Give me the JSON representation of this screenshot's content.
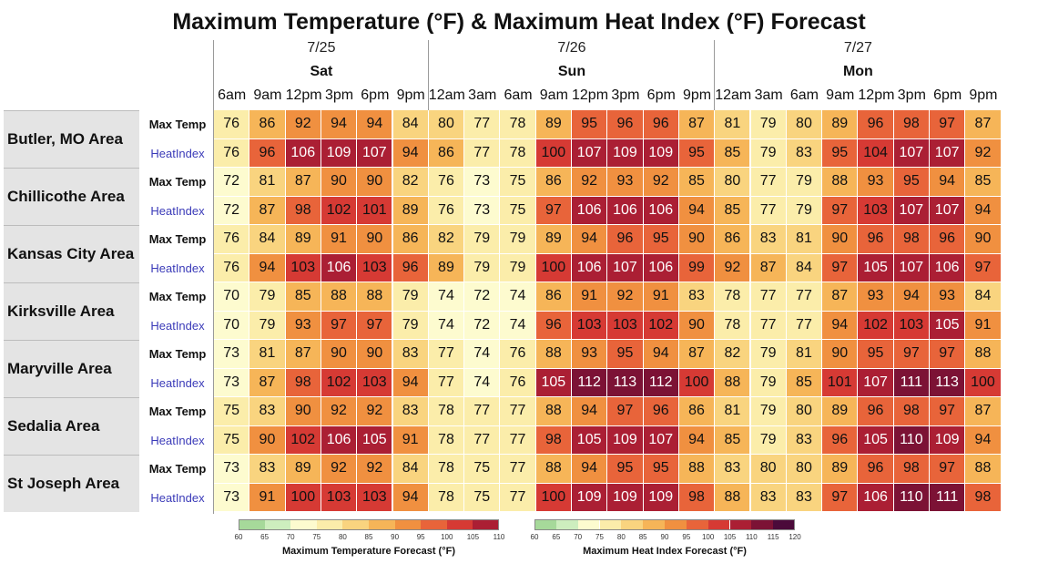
{
  "title": "Maximum Temperature (°F) & Maximum Heat Index (°F) Forecast",
  "chart_data": {
    "type": "table",
    "days": [
      {
        "date": "7/25",
        "day": "Sat",
        "times": [
          "6am",
          "9am",
          "12pm",
          "3pm",
          "6pm",
          "9pm"
        ]
      },
      {
        "date": "7/26",
        "day": "Sun",
        "times": [
          "12am",
          "3am",
          "6am",
          "9am",
          "12pm",
          "3pm",
          "6pm",
          "9pm"
        ]
      },
      {
        "date": "7/27",
        "day": "Mon",
        "times": [
          "12am",
          "3am",
          "6am",
          "9am",
          "12pm",
          "3pm",
          "6pm",
          "9pm"
        ]
      }
    ],
    "row_labels": {
      "max_temp": "Max Temp",
      "heat_index": "HeatIndex"
    },
    "areas": [
      {
        "name": "Butler, MO Area",
        "max_temp": [
          76,
          86,
          92,
          94,
          94,
          84,
          80,
          77,
          78,
          89,
          95,
          96,
          96,
          87,
          81,
          79,
          80,
          89,
          96,
          98,
          97,
          87
        ],
        "heat_index": [
          76,
          96,
          106,
          109,
          107,
          94,
          86,
          77,
          78,
          100,
          107,
          109,
          109,
          95,
          85,
          79,
          83,
          95,
          104,
          107,
          107,
          92
        ]
      },
      {
        "name": "Chillicothe Area",
        "max_temp": [
          72,
          81,
          87,
          90,
          90,
          82,
          76,
          73,
          75,
          86,
          92,
          93,
          92,
          85,
          80,
          77,
          79,
          88,
          93,
          95,
          94,
          85
        ],
        "heat_index": [
          72,
          87,
          98,
          102,
          101,
          89,
          76,
          73,
          75,
          97,
          106,
          106,
          106,
          94,
          85,
          77,
          79,
          97,
          103,
          107,
          107,
          94
        ]
      },
      {
        "name": "Kansas City Area",
        "max_temp": [
          76,
          84,
          89,
          91,
          90,
          86,
          82,
          79,
          79,
          89,
          94,
          96,
          95,
          90,
          86,
          83,
          81,
          90,
          96,
          98,
          96,
          90
        ],
        "heat_index": [
          76,
          94,
          103,
          106,
          103,
          96,
          89,
          79,
          79,
          100,
          106,
          107,
          106,
          99,
          92,
          87,
          84,
          97,
          105,
          107,
          106,
          97
        ]
      },
      {
        "name": "Kirksville Area",
        "max_temp": [
          70,
          79,
          85,
          88,
          88,
          79,
          74,
          72,
          74,
          86,
          91,
          92,
          91,
          83,
          78,
          77,
          77,
          87,
          93,
          94,
          93,
          84
        ],
        "heat_index": [
          70,
          79,
          93,
          97,
          97,
          79,
          74,
          72,
          74,
          96,
          103,
          103,
          102,
          90,
          78,
          77,
          77,
          94,
          102,
          103,
          105,
          91
        ]
      },
      {
        "name": "Maryville Area",
        "max_temp": [
          73,
          81,
          87,
          90,
          90,
          83,
          77,
          74,
          76,
          88,
          93,
          95,
          94,
          87,
          82,
          79,
          81,
          90,
          95,
          97,
          97,
          88
        ],
        "heat_index": [
          73,
          87,
          98,
          102,
          103,
          94,
          77,
          74,
          76,
          105,
          112,
          113,
          112,
          100,
          88,
          79,
          85,
          101,
          107,
          111,
          113,
          100
        ]
      },
      {
        "name": "Sedalia Area",
        "max_temp": [
          75,
          83,
          90,
          92,
          92,
          83,
          78,
          77,
          77,
          88,
          94,
          97,
          96,
          86,
          81,
          79,
          80,
          89,
          96,
          98,
          97,
          87
        ],
        "heat_index": [
          75,
          90,
          102,
          106,
          105,
          91,
          78,
          77,
          77,
          98,
          105,
          109,
          107,
          94,
          85,
          79,
          83,
          96,
          105,
          110,
          109,
          94
        ]
      },
      {
        "name": "St Joseph Area",
        "max_temp": [
          73,
          83,
          89,
          92,
          92,
          84,
          78,
          75,
          77,
          88,
          94,
          95,
          95,
          88,
          83,
          80,
          80,
          89,
          96,
          98,
          97,
          88
        ],
        "heat_index": [
          73,
          91,
          100,
          103,
          103,
          94,
          78,
          75,
          77,
          100,
          109,
          109,
          109,
          98,
          88,
          83,
          83,
          97,
          106,
          110,
          111,
          98
        ]
      }
    ]
  },
  "legends": [
    {
      "caption": "Maximum Temperature Forecast (°F)",
      "ticks": [
        "60",
        "65",
        "70",
        "75",
        "80",
        "85",
        "90",
        "95",
        "100",
        "105",
        "110"
      ],
      "colors": [
        "#a6d99a",
        "#cdeebe",
        "#fdfbcf",
        "#fbedaa",
        "#f9d47f",
        "#f6b558",
        "#f09040",
        "#e8643a",
        "#d63a34",
        "#ab1f34"
      ]
    },
    {
      "caption": "Maximum Heat Index Forecast (°F)",
      "ticks": [
        "60",
        "65",
        "70",
        "75",
        "80",
        "85",
        "90",
        "95",
        "100",
        "105",
        "110",
        "115",
        "120"
      ],
      "colors": [
        "#a6d99a",
        "#cdeebe",
        "#fdfbcf",
        "#fbedaa",
        "#f9d47f",
        "#f6b558",
        "#f09040",
        "#e8643a",
        "#d63a34",
        "#ab1f34",
        "#7c1235",
        "#4b0a3a"
      ]
    }
  ]
}
